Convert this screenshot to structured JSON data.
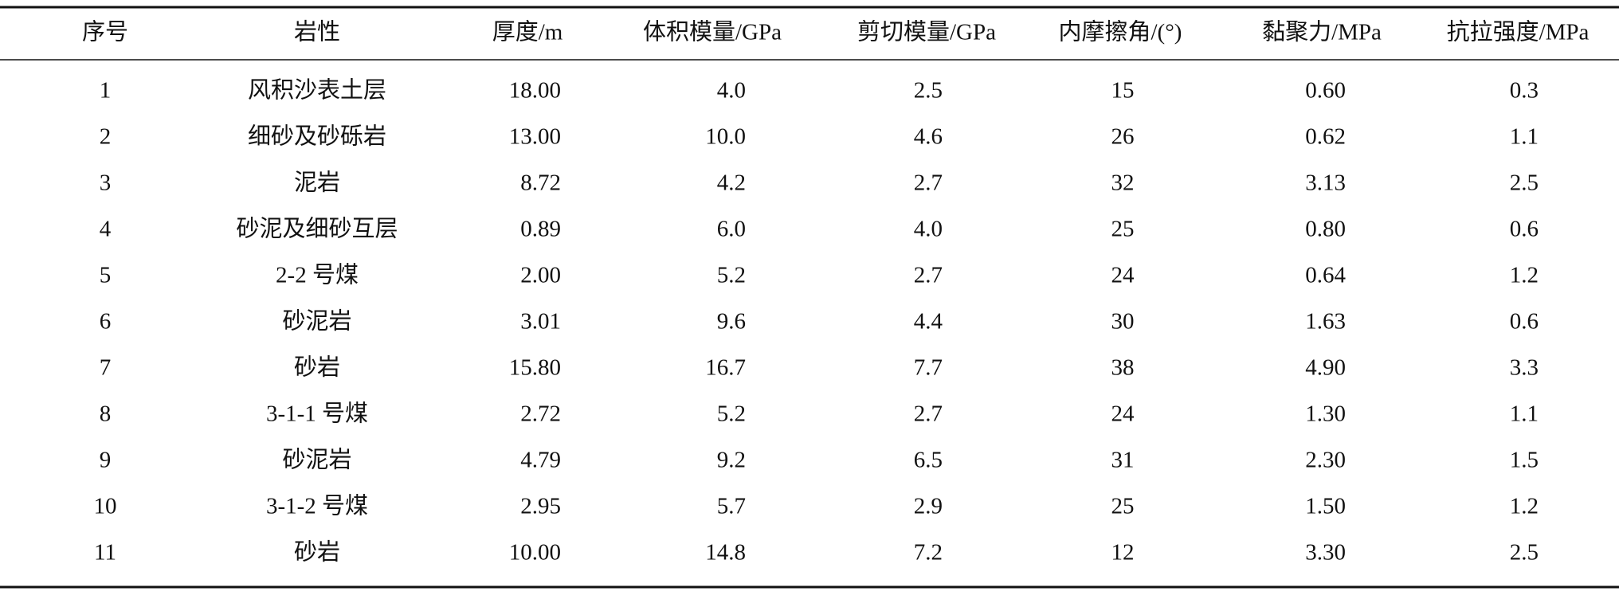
{
  "table": {
    "header": [
      "序号",
      "岩性",
      "厚度/m",
      "体积模量/GPa",
      "剪切模量/GPa",
      "内摩擦角/(°)",
      "黏聚力/MPa",
      "抗拉强度/MPa"
    ],
    "rows": [
      [
        "1",
        "风积沙表土层",
        "18.00",
        "4.0",
        "2.5",
        "15",
        "0.60",
        "0.3"
      ],
      [
        "2",
        "细砂及砂砾岩",
        "13.00",
        "10.0",
        "4.6",
        "26",
        "0.62",
        "1.1"
      ],
      [
        "3",
        "泥岩",
        "8.72",
        "4.2",
        "2.7",
        "32",
        "3.13",
        "2.5"
      ],
      [
        "4",
        "砂泥及细砂互层",
        "0.89",
        "6.0",
        "4.0",
        "25",
        "0.80",
        "0.6"
      ],
      [
        "5",
        "2-2 号煤",
        "2.00",
        "5.2",
        "2.7",
        "24",
        "0.64",
        "1.2"
      ],
      [
        "6",
        "砂泥岩",
        "3.01",
        "9.6",
        "4.4",
        "30",
        "1.63",
        "0.6"
      ],
      [
        "7",
        "砂岩",
        "15.80",
        "16.7",
        "7.7",
        "38",
        "4.90",
        "3.3"
      ],
      [
        "8",
        "3-1-1 号煤",
        "2.72",
        "5.2",
        "2.7",
        "24",
        "1.30",
        "1.1"
      ],
      [
        "9",
        "砂泥岩",
        "4.79",
        "9.2",
        "6.5",
        "31",
        "2.30",
        "1.5"
      ],
      [
        "10",
        "3-1-2 号煤",
        "2.95",
        "5.7",
        "2.9",
        "25",
        "1.50",
        "1.2"
      ],
      [
        "11",
        "砂岩",
        "10.00",
        "14.8",
        "7.2",
        "12",
        "3.30",
        "2.5"
      ]
    ]
  }
}
